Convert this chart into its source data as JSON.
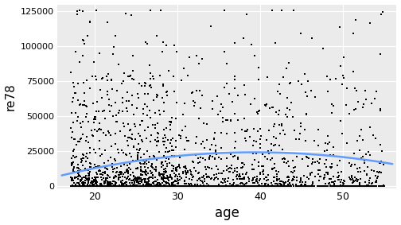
{
  "title": "",
  "xlabel": "age",
  "ylabel": "re78",
  "xlim": [
    15.5,
    56.5
  ],
  "ylim": [
    -1500,
    130000
  ],
  "yticks": [
    0,
    25000,
    50000,
    75000,
    100000,
    125000
  ],
  "ytick_labels": [
    "0",
    "25000",
    "50000",
    "75000",
    "100000",
    "125000"
  ],
  "xticks": [
    20,
    30,
    40,
    50
  ],
  "xtick_labels": [
    "20",
    "30",
    "40",
    "50"
  ],
  "background_color": "#EBEBEB",
  "grid_color": "#FFFFFF",
  "point_color": "black",
  "point_size": 2.0,
  "curve_color": "#619CFF",
  "curve_lw": 1.8,
  "seed": 42,
  "n_points": 2675,
  "curve_x": [
    17,
    25,
    33,
    40,
    47,
    55
  ],
  "curve_y": [
    9000,
    18000,
    23000,
    24500,
    22000,
    17000
  ]
}
